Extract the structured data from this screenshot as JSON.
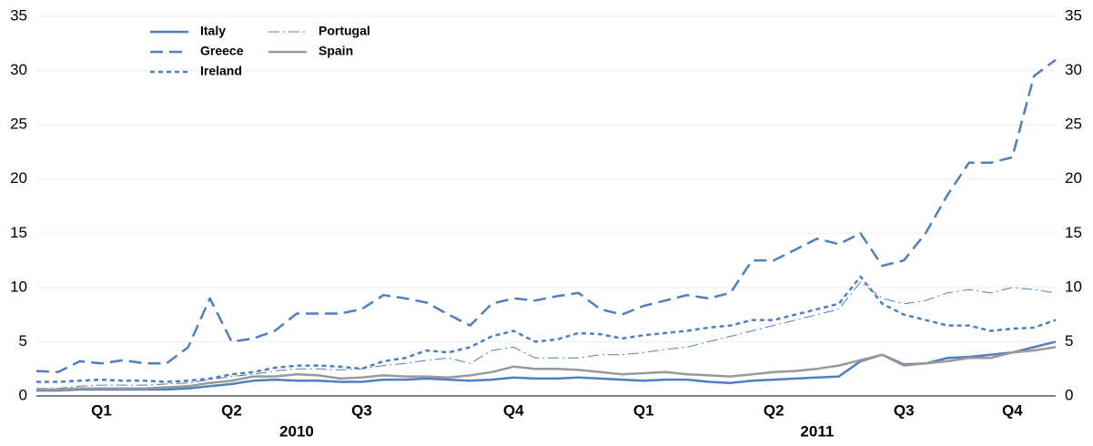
{
  "chart_data": {
    "type": "line",
    "categories": [
      null,
      null,
      null,
      "Q1",
      null,
      null,
      null,
      null,
      null,
      "Q2",
      null,
      null,
      null,
      null,
      null,
      "Q3",
      null,
      null,
      null,
      null,
      null,
      null,
      "Q4",
      null,
      null,
      null,
      null,
      null,
      "Q1",
      null,
      null,
      null,
      null,
      null,
      "Q2",
      null,
      null,
      null,
      null,
      null,
      "Q3",
      null,
      null,
      null,
      null,
      "Q4",
      null,
      null
    ],
    "x_groups": [
      "2010",
      "2011"
    ],
    "series": [
      {
        "name": "Italy",
        "color": "#4f7fbf",
        "linestyle": "solid",
        "values": [
          0.5,
          0.5,
          0.6,
          0.6,
          0.6,
          0.6,
          0.6,
          0.7,
          0.9,
          1.1,
          1.4,
          1.5,
          1.4,
          1.4,
          1.3,
          1.3,
          1.5,
          1.5,
          1.6,
          1.5,
          1.4,
          1.5,
          1.7,
          1.6,
          1.6,
          1.7,
          1.6,
          1.5,
          1.4,
          1.5,
          1.5,
          1.3,
          1.2,
          1.4,
          1.5,
          1.6,
          1.7,
          1.8,
          3.2,
          3.8,
          2.9,
          3.0,
          3.5,
          3.6,
          3.8,
          4.0,
          4.5,
          5.0
        ]
      },
      {
        "name": "Greece",
        "color": "#4f7fbf",
        "linestyle": "dashed",
        "values": [
          2.3,
          2.2,
          3.2,
          3.0,
          3.3,
          3.0,
          3.0,
          4.5,
          9.0,
          5.0,
          5.3,
          6.0,
          7.6,
          7.6,
          7.6,
          8.0,
          9.3,
          9.0,
          8.6,
          7.5,
          6.5,
          8.5,
          9.0,
          8.8,
          9.2,
          9.5,
          8.0,
          7.5,
          8.3,
          8.8,
          9.3,
          9.0,
          9.5,
          12.5,
          12.5,
          13.5,
          14.5,
          14.0,
          15.0,
          12.0,
          12.5,
          15.0,
          18.5,
          21.5,
          21.5,
          22.0,
          29.5,
          31.0
        ]
      },
      {
        "name": "Ireland",
        "color": "#4f7fbf",
        "linestyle": "dotted",
        "values": [
          1.3,
          1.3,
          1.4,
          1.5,
          1.4,
          1.4,
          1.3,
          1.4,
          1.6,
          2.0,
          2.2,
          2.6,
          2.8,
          2.8,
          2.7,
          2.5,
          3.2,
          3.5,
          4.2,
          4.0,
          4.5,
          5.5,
          6.0,
          5.0,
          5.2,
          5.8,
          5.7,
          5.3,
          5.6,
          5.8,
          6.0,
          6.3,
          6.5,
          7.0,
          7.0,
          7.5,
          8.0,
          8.5,
          11.0,
          8.5,
          7.5,
          7.0,
          6.5,
          6.5,
          6.0,
          6.2,
          6.3,
          7.0
        ]
      },
      {
        "name": "Portugal",
        "color": "#4f7fbf",
        "linestyle": "dashdot",
        "values": [
          0.7,
          0.7,
          0.9,
          1.0,
          1.0,
          1.0,
          1.1,
          1.2,
          1.5,
          1.8,
          2.0,
          2.3,
          2.5,
          2.5,
          2.4,
          2.5,
          2.8,
          3.0,
          3.3,
          3.5,
          3.0,
          4.2,
          4.5,
          3.5,
          3.5,
          3.5,
          3.8,
          3.8,
          4.0,
          4.3,
          4.5,
          5.0,
          5.5,
          6.0,
          6.5,
          7.0,
          7.5,
          8.0,
          10.5,
          9.0,
          8.5,
          8.8,
          9.5,
          9.8,
          9.5,
          10.0,
          9.8,
          9.5
        ]
      },
      {
        "name": "Spain",
        "color": "#999999",
        "linestyle": "solid",
        "values": [
          0.6,
          0.6,
          0.7,
          0.7,
          0.7,
          0.7,
          0.8,
          0.9,
          1.2,
          1.4,
          1.8,
          1.8,
          2.0,
          1.9,
          1.6,
          1.7,
          1.9,
          1.8,
          1.8,
          1.7,
          1.9,
          2.2,
          2.7,
          2.5,
          2.5,
          2.4,
          2.2,
          2.0,
          2.1,
          2.2,
          2.0,
          1.9,
          1.8,
          2.0,
          2.2,
          2.3,
          2.5,
          2.8,
          3.3,
          3.8,
          2.8,
          3.0,
          3.2,
          3.5,
          3.5,
          4.0,
          4.2,
          4.5
        ]
      }
    ],
    "ylim": [
      0,
      35
    ],
    "yticks": [
      0,
      5,
      10,
      15,
      20,
      25,
      30,
      35
    ],
    "grid": true,
    "legend": "upper left"
  }
}
